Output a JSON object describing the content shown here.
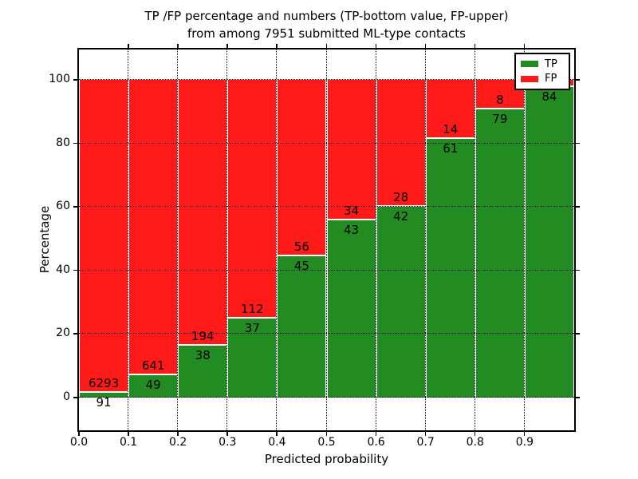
{
  "chart_data": {
    "type": "bar",
    "stacked": true,
    "title_line1": "TP /FP percentage and numbers (TP-bottom value, FP-upper)",
    "title_line2": "from among 7951 submitted ML-type contacts",
    "total_submitted": 7951,
    "xlabel": "Predicted probability",
    "ylabel": "Percentage",
    "xlim": [
      0,
      1
    ],
    "ylim": [
      -10.5,
      110
    ],
    "grid": true,
    "grid_style": "dotted",
    "x_tick_labels": [
      "0.0",
      "0.1",
      "0.2",
      "0.3",
      "0.4",
      "0.5",
      "0.6",
      "0.7",
      "0.8",
      "0.9"
    ],
    "y_ticks": [
      0,
      20,
      40,
      60,
      80,
      100
    ],
    "categories": [
      "0.0-0.1",
      "0.1-0.2",
      "0.2-0.3",
      "0.3-0.4",
      "0.4-0.5",
      "0.5-0.6",
      "0.6-0.7",
      "0.7-0.8",
      "0.8-0.9",
      "0.9-1.0"
    ],
    "series": [
      {
        "name": "TP",
        "color": "#228B22",
        "counts": [
          91,
          49,
          38,
          37,
          45,
          43,
          42,
          61,
          79,
          84
        ]
      },
      {
        "name": "FP",
        "color": "#FF1A1A",
        "counts": [
          6293,
          641,
          194,
          112,
          56,
          34,
          28,
          14,
          8,
          null
        ]
      }
    ],
    "tp_pct": [
      1.43,
      7.1,
      16.38,
      24.83,
      44.55,
      55.84,
      60.0,
      81.33,
      90.8,
      97.67
    ],
    "legend": {
      "position": "upper right",
      "entries": [
        {
          "label": "TP",
          "color": "#228B22"
        },
        {
          "label": "FP",
          "color": "#FF1A1A"
        }
      ]
    }
  }
}
